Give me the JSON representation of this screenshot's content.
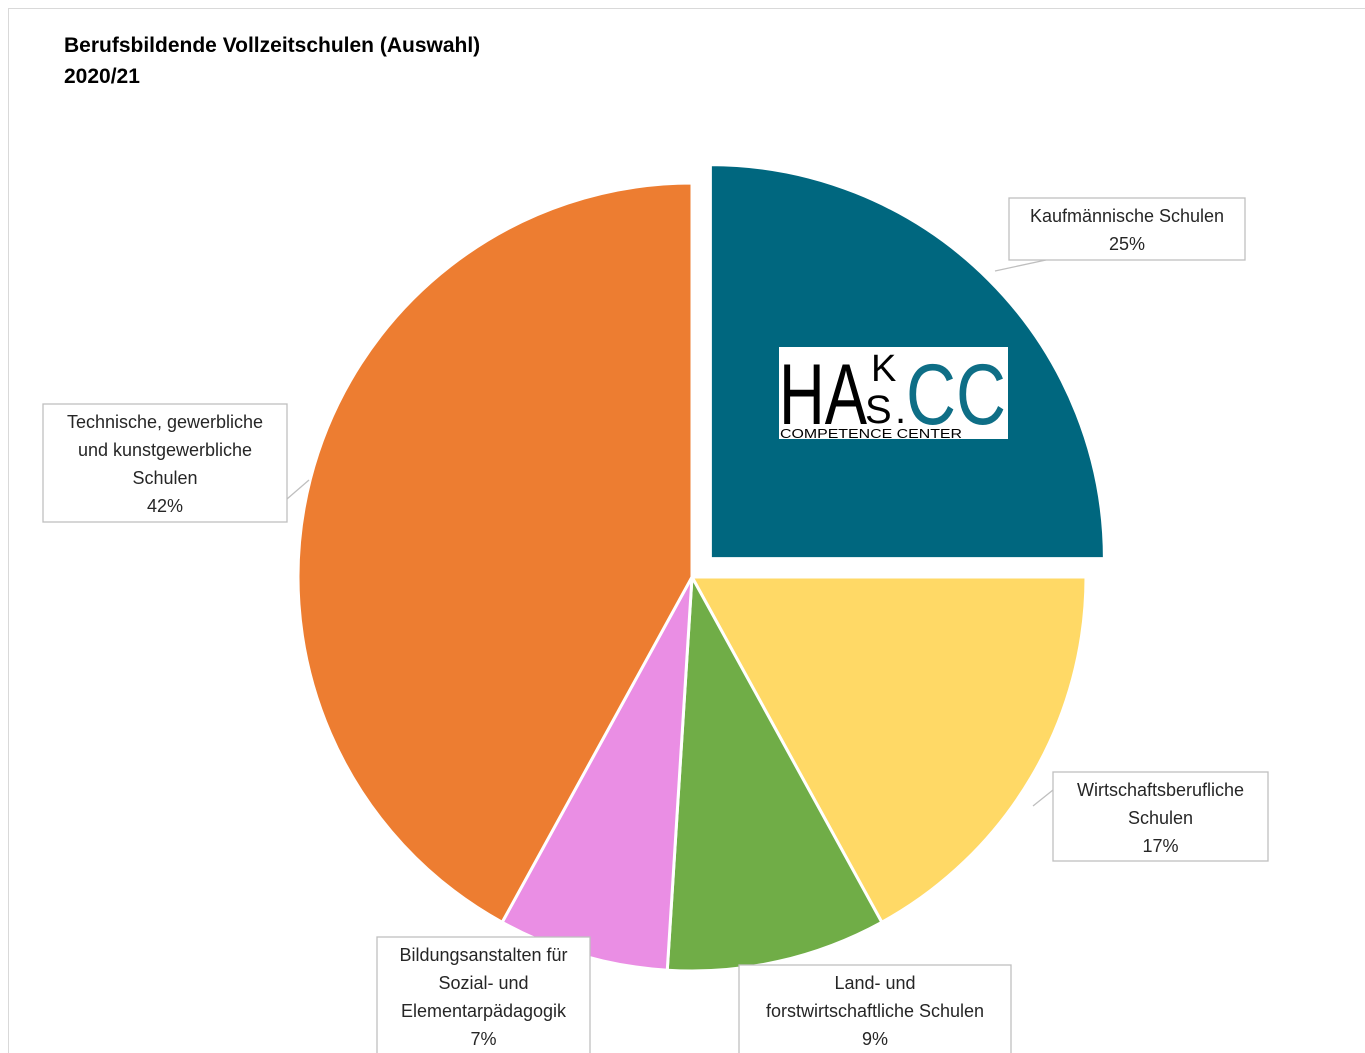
{
  "chart_data": {
    "type": "pie",
    "title": [
      "Berufsbildende Vollzeitschulen (Auswahl)",
      "2020/21"
    ],
    "slices": [
      {
        "label": [
          "Kaufmännische Schulen"
        ],
        "value": 25,
        "value_label": "25%",
        "color": "#00677f",
        "exploded": true
      },
      {
        "label": [
          "Wirtschaftsberufliche",
          "Schulen"
        ],
        "value": 17,
        "value_label": "17%",
        "color": "#ffd966",
        "exploded": false
      },
      {
        "label": [
          "Land- und",
          "forstwirtschaftliche Schulen"
        ],
        "value": 9,
        "value_label": "9%",
        "color": "#70ad47",
        "exploded": false
      },
      {
        "label": [
          "Bildungsanstalten für",
          "Sozial- und",
          "Elementarpädagogik"
        ],
        "value": 7,
        "value_label": "7%",
        "color": "#ea8ee4",
        "exploded": false
      },
      {
        "label": [
          "Technische, gewerbliche",
          "und kunstgewerbliche",
          "Schulen"
        ],
        "value": 42,
        "value_label": "42%",
        "color": "#ed7d31",
        "exploded": false
      }
    ],
    "start_angle_deg": 0,
    "direction": "clockwise"
  },
  "logo": {
    "text_main": "HA",
    "text_k": "K",
    "text_s": "S",
    "text_dot": ".",
    "text_cc": "CC",
    "subtitle": "COMPETENCE CENTER",
    "accent_color": "#0e6e86"
  }
}
